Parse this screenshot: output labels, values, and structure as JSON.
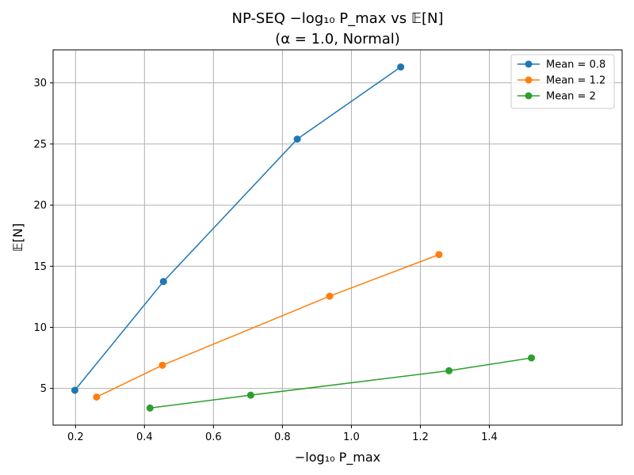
{
  "chart_data": {
    "type": "line",
    "title_line1": "NP-SEQ −log₁₀ P_max vs 𝔼[N]",
    "title_line2": "(α = 1.0, Normal)",
    "xlabel": "−log₁₀ P_max",
    "ylabel": "𝔼[N]",
    "xlim": [
      0.135,
      1.785
    ],
    "ylim": [
      2.0,
      32.7
    ],
    "xticks": [
      0.2,
      0.4,
      0.6,
      0.8,
      1.0,
      1.2,
      1.4
    ],
    "xtick_labels": [
      "0.2",
      "0.4",
      "0.6",
      "0.8",
      "1.0",
      "1.2",
      "1.4"
    ],
    "yticks": [
      5,
      10,
      15,
      20,
      25,
      30
    ],
    "ytick_labels": [
      "5",
      "10",
      "15",
      "20",
      "25",
      "30"
    ],
    "grid": true,
    "legend_position": "top-right",
    "series": [
      {
        "name": "Mean = 0.8",
        "color": "#1f77b4",
        "points": [
          [
            0.198,
            4.85
          ],
          [
            0.455,
            13.75
          ],
          [
            0.843,
            25.4
          ],
          [
            1.143,
            31.3
          ]
        ]
      },
      {
        "name": "Mean = 1.2",
        "color": "#ff7f0e",
        "points": [
          [
            0.261,
            4.3
          ],
          [
            0.452,
            6.9
          ],
          [
            0.937,
            12.55
          ],
          [
            1.254,
            15.95
          ]
        ]
      },
      {
        "name": "Mean = 2",
        "color": "#2ca02c",
        "points": [
          [
            0.416,
            3.4
          ],
          [
            0.708,
            4.45
          ],
          [
            1.283,
            6.45
          ],
          [
            1.522,
            7.5
          ]
        ]
      }
    ]
  }
}
